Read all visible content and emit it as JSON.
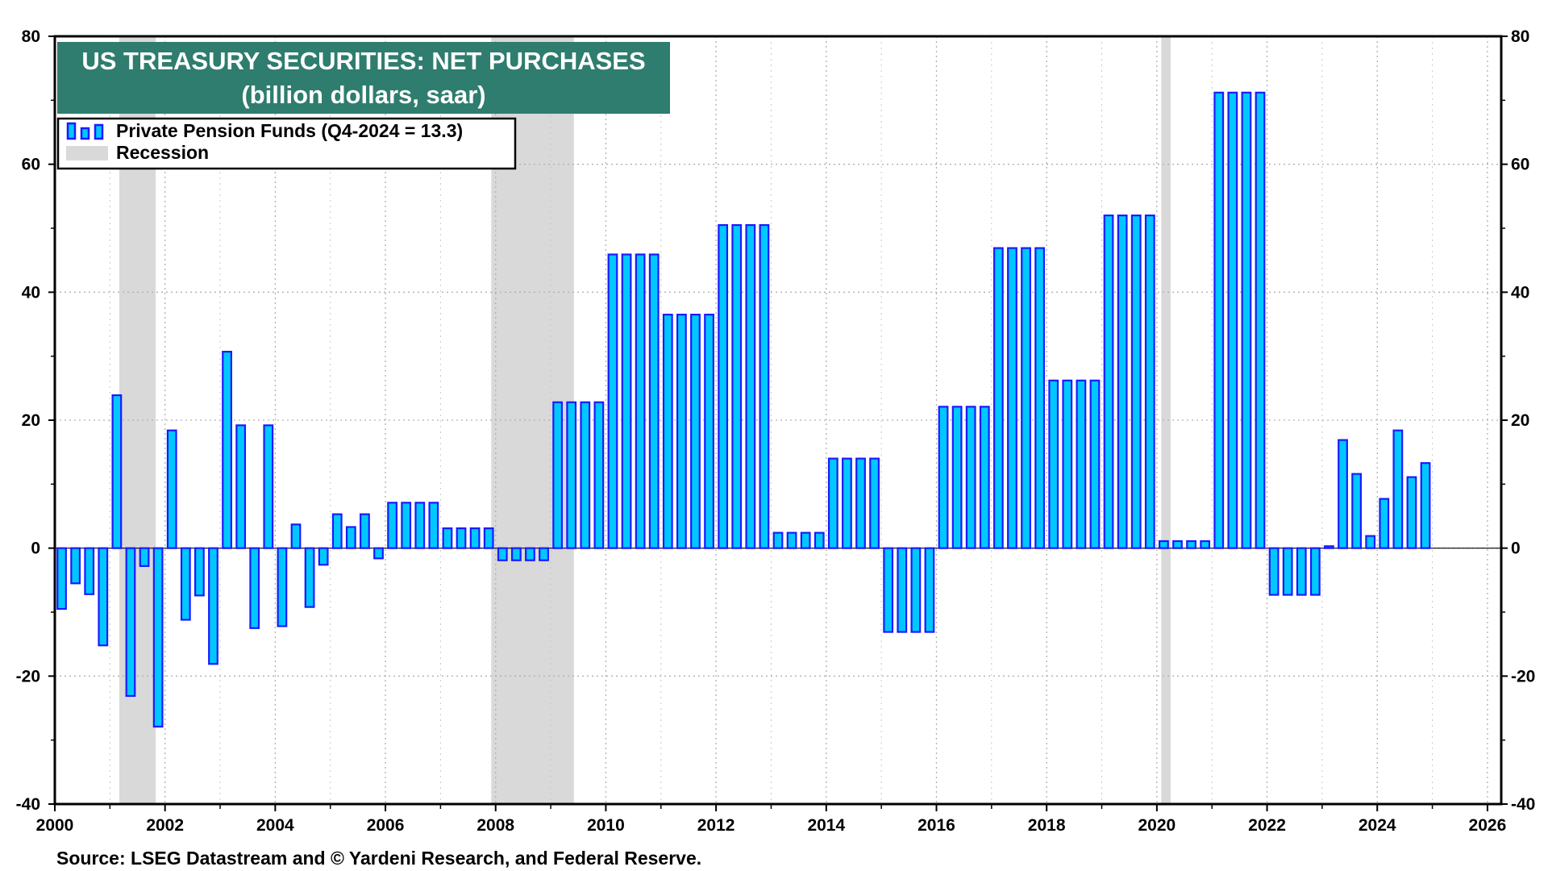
{
  "chart_data": {
    "type": "bar",
    "title": "US TREASURY SECURITIES: NET PURCHASES",
    "subtitle": "(billion dollars, saar)",
    "source": "Source: LSEG Datastream and © Yardeni Research, and Federal Reserve.",
    "xlim": [
      2000,
      2026.25
    ],
    "ylim": [
      -40,
      80
    ],
    "y_ticks": [
      -40,
      -20,
      0,
      20,
      40,
      60,
      80
    ],
    "x_ticks": [
      2000,
      2002,
      2004,
      2006,
      2008,
      2010,
      2012,
      2014,
      2016,
      2018,
      2020,
      2022,
      2024,
      2026
    ],
    "grid": true,
    "legend_position": "top-left",
    "colors": {
      "bar_fill": "#00c8ff",
      "bar_edge": "#1a1aff",
      "recession": "#d9d9d9",
      "title_bg": "#2e7d6e"
    },
    "legend": [
      {
        "label": "Private Pension Funds (Q4-2024 = 13.3)",
        "type": "bar"
      },
      {
        "label": "Recession",
        "type": "shade"
      }
    ],
    "recessions": [
      {
        "start": 2001.17,
        "end": 2001.83
      },
      {
        "start": 2007.92,
        "end": 2009.42
      },
      {
        "start": 2020.08,
        "end": 2020.25
      }
    ],
    "series": [
      {
        "name": "Private Pension Funds",
        "quarters": [
          "2000-Q1",
          "2000-Q2",
          "2000-Q3",
          "2000-Q4",
          "2001-Q1",
          "2001-Q2",
          "2001-Q3",
          "2001-Q4",
          "2002-Q1",
          "2002-Q2",
          "2002-Q3",
          "2002-Q4",
          "2003-Q1",
          "2003-Q2",
          "2003-Q3",
          "2003-Q4",
          "2004-Q1",
          "2004-Q2",
          "2004-Q3",
          "2004-Q4",
          "2005-Q1",
          "2005-Q2",
          "2005-Q3",
          "2005-Q4",
          "2006-Q1",
          "2006-Q2",
          "2006-Q3",
          "2006-Q4",
          "2007-Q1",
          "2007-Q2",
          "2007-Q3",
          "2007-Q4",
          "2008-Q1",
          "2008-Q2",
          "2008-Q3",
          "2008-Q4",
          "2009-Q1",
          "2009-Q2",
          "2009-Q3",
          "2009-Q4",
          "2010-Q1",
          "2010-Q2",
          "2010-Q3",
          "2010-Q4",
          "2011-Q1",
          "2011-Q2",
          "2011-Q3",
          "2011-Q4",
          "2012-Q1",
          "2012-Q2",
          "2012-Q3",
          "2012-Q4",
          "2013-Q1",
          "2013-Q2",
          "2013-Q3",
          "2013-Q4",
          "2014-Q1",
          "2014-Q2",
          "2014-Q3",
          "2014-Q4",
          "2015-Q1",
          "2015-Q2",
          "2015-Q3",
          "2015-Q4",
          "2016-Q1",
          "2016-Q2",
          "2016-Q3",
          "2016-Q4",
          "2017-Q1",
          "2017-Q2",
          "2017-Q3",
          "2017-Q4",
          "2018-Q1",
          "2018-Q2",
          "2018-Q3",
          "2018-Q4",
          "2019-Q1",
          "2019-Q2",
          "2019-Q3",
          "2019-Q4",
          "2020-Q1",
          "2020-Q2",
          "2020-Q3",
          "2020-Q4",
          "2021-Q1",
          "2021-Q2",
          "2021-Q3",
          "2021-Q4",
          "2022-Q1",
          "2022-Q2",
          "2022-Q3",
          "2022-Q4",
          "2023-Q1",
          "2023-Q2",
          "2023-Q3",
          "2023-Q4",
          "2024-Q1",
          "2024-Q2",
          "2024-Q3",
          "2024-Q4"
        ],
        "values": [
          -9.5,
          -5.5,
          -7.2,
          -15.2,
          23.9,
          -23.1,
          -2.8,
          -27.9,
          18.4,
          -11.2,
          -7.4,
          -18.1,
          30.7,
          19.2,
          -12.5,
          19.2,
          -12.2,
          3.7,
          -9.2,
          -2.6,
          5.3,
          3.3,
          5.3,
          -1.6,
          7.1,
          7.1,
          7.1,
          7.1,
          3.1,
          3.1,
          3.1,
          3.1,
          -1.9,
          -1.9,
          -1.9,
          -1.9,
          22.8,
          22.8,
          22.8,
          22.8,
          45.9,
          45.9,
          45.9,
          45.9,
          36.5,
          36.5,
          36.5,
          36.5,
          50.5,
          50.5,
          50.5,
          50.5,
          2.4,
          2.4,
          2.4,
          2.4,
          14.0,
          14.0,
          14.0,
          14.0,
          -13.1,
          -13.1,
          -13.1,
          -13.1,
          22.1,
          22.1,
          22.1,
          22.1,
          46.9,
          46.9,
          46.9,
          46.9,
          26.2,
          26.2,
          26.2,
          26.2,
          52.0,
          52.0,
          52.0,
          52.0,
          1.1,
          1.1,
          1.1,
          1.1,
          71.2,
          71.2,
          71.2,
          71.2,
          -7.3,
          -7.3,
          -7.3,
          -7.3,
          0.3,
          16.9,
          11.6,
          1.9,
          7.7,
          18.4,
          11.1,
          13.3
        ]
      }
    ]
  }
}
